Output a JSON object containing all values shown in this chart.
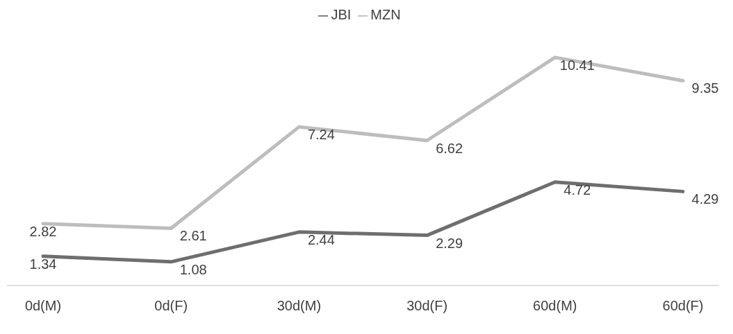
{
  "chart_data": {
    "type": "line",
    "categories": [
      "0d(M)",
      "0d(F)",
      "30d(M)",
      "30d(F)",
      "60d(M)",
      "60d(F)"
    ],
    "series": [
      {
        "name": "JBI",
        "color": "#6e6e6e",
        "values": [
          1.34,
          1.08,
          2.44,
          2.29,
          4.72,
          4.29
        ]
      },
      {
        "name": "MZN",
        "color": "#bdbdbd",
        "values": [
          2.82,
          2.61,
          7.24,
          6.62,
          10.41,
          9.35
        ]
      }
    ],
    "data_labels": true,
    "legend": "top",
    "marker": "none",
    "line_style": "solid",
    "grid": false,
    "tick_labels": "x"
  }
}
